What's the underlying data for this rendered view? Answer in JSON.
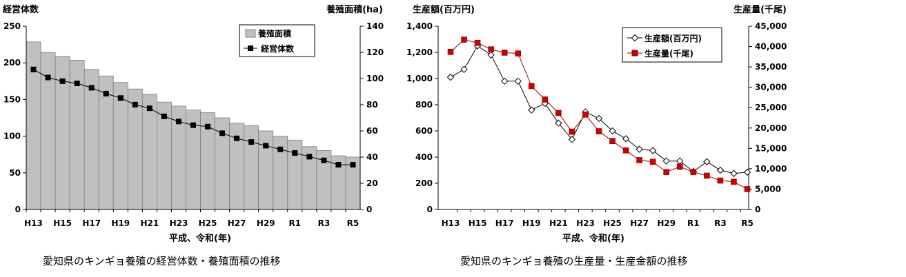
{
  "chart_data": [
    {
      "type": "bar+line",
      "title": "愛知県のキンギョ養殖の経営体数・養殖面積の推移",
      "xlabel": "平成、令和(年)",
      "ylabel_left": "経営体数",
      "ylabel_right": "養殖面積(ha)",
      "ylim_left": [
        0,
        250
      ],
      "ylim_right": [
        0,
        140
      ],
      "yticks_left": [
        "0",
        "50",
        "100",
        "150",
        "200",
        "250"
      ],
      "yticks_right": [
        "0",
        "20",
        "40",
        "60",
        "80",
        "100",
        "120",
        "140"
      ],
      "categories": [
        "H13",
        "H14",
        "H15",
        "H16",
        "H17",
        "H18",
        "H19",
        "H20",
        "H21",
        "H22",
        "H23",
        "H24",
        "H25",
        "H26",
        "H27",
        "H28",
        "H29",
        "H30",
        "R1",
        "R2",
        "R3",
        "R4",
        "R5"
      ],
      "xtick_labels": [
        "H13",
        "H15",
        "H17",
        "H19",
        "H21",
        "H23",
        "H25",
        "H27",
        "H29",
        "R1",
        "R3",
        "R5"
      ],
      "legend": [
        "養殖面積",
        "経営体数"
      ],
      "series": [
        {
          "name": "養殖面積",
          "axis": "right",
          "kind": "bar",
          "values": [
            128,
            120,
            117,
            114,
            107,
            102,
            97,
            92,
            88,
            82,
            79,
            76,
            74,
            70,
            66,
            64,
            60,
            56,
            53,
            48,
            45,
            41,
            40
          ]
        },
        {
          "name": "経営体数",
          "axis": "left",
          "kind": "line",
          "values": [
            191,
            180,
            175,
            172,
            166,
            158,
            152,
            143,
            138,
            127,
            120,
            115,
            113,
            104,
            97,
            92,
            87,
            82,
            77,
            72,
            67,
            61,
            61
          ]
        }
      ]
    },
    {
      "type": "line",
      "title": "愛知県のキンギョ養殖の生産量・生産金額の推移",
      "xlabel": "平成、令和(年)",
      "ylabel_left": "生産額(百万円)",
      "ylabel_right": "生産量(千尾)",
      "ylim_left": [
        0,
        1400
      ],
      "ylim_right": [
        0,
        45000
      ],
      "yticks_left": [
        "0",
        "200",
        "400",
        "600",
        "800",
        "1,000",
        "1,200",
        "1,400"
      ],
      "yticks_right": [
        "0",
        "5,000",
        "10,000",
        "15,000",
        "20,000",
        "25,000",
        "30,000",
        "35,000",
        "40,000",
        "45,000"
      ],
      "categories": [
        "H13",
        "H14",
        "H15",
        "H16",
        "H17",
        "H18",
        "H19",
        "H20",
        "H21",
        "H22",
        "H23",
        "H24",
        "H25",
        "H26",
        "H27",
        "H28",
        "H29",
        "H30",
        "R1",
        "R2",
        "R3",
        "R4",
        "R5"
      ],
      "xtick_labels": [
        "H13",
        "H15",
        "H17",
        "H19",
        "H21",
        "H23",
        "H25",
        "H27",
        "H29",
        "R1",
        "R3",
        "R5"
      ],
      "legend": [
        "生産額(百万円)",
        "生産量(千尾)"
      ],
      "series": [
        {
          "name": "生産額(百万円)",
          "axis": "left",
          "marker": "diamond",
          "values": [
            1010,
            1070,
            1250,
            1180,
            980,
            980,
            760,
            810,
            660,
            535,
            745,
            695,
            600,
            540,
            460,
            450,
            370,
            370,
            290,
            365,
            300,
            275,
            285
          ]
        },
        {
          "name": "生産量(千尾)",
          "axis": "right",
          "marker": "square",
          "values": [
            38700,
            41700,
            40900,
            39300,
            38500,
            38300,
            30300,
            27000,
            23700,
            19100,
            23300,
            19200,
            16800,
            14500,
            12100,
            11700,
            9200,
            10500,
            9200,
            8300,
            7100,
            6800,
            5000
          ]
        }
      ]
    }
  ]
}
